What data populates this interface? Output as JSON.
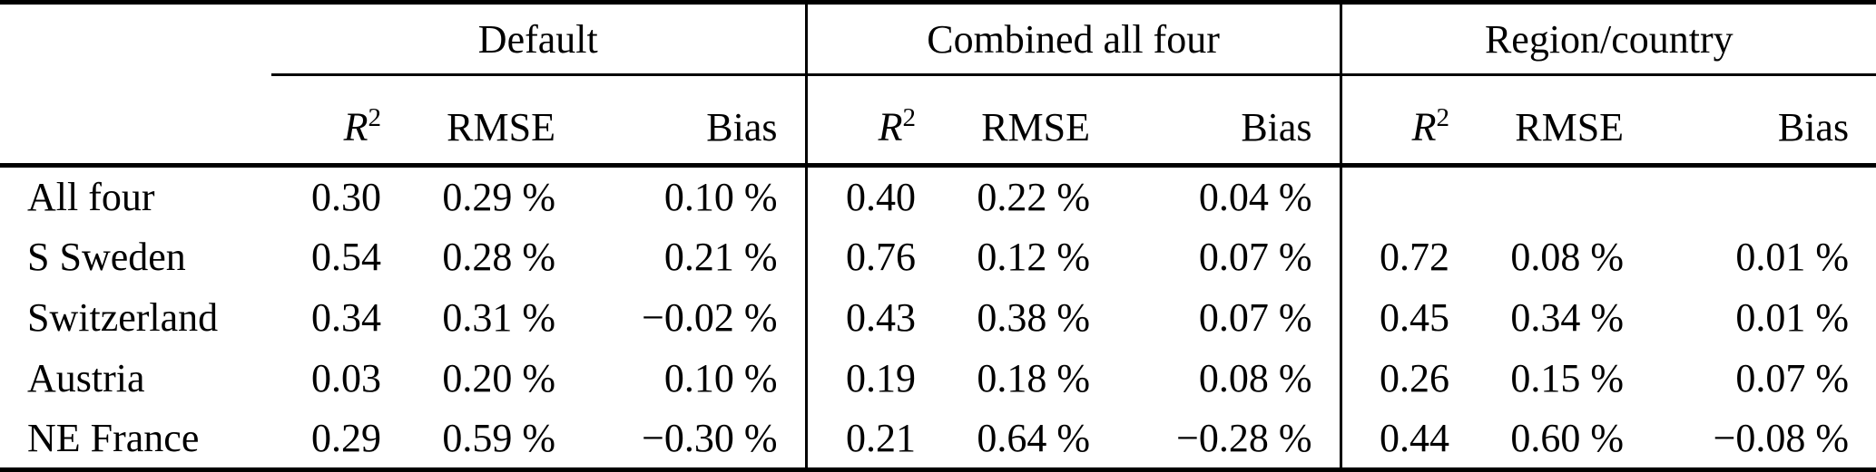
{
  "colors": {
    "text": "#000000",
    "background": "#ffffff",
    "rule": "#000000"
  },
  "table": {
    "groups": [
      {
        "label": "Default"
      },
      {
        "label": "Combined all four"
      },
      {
        "label": "Region/country"
      }
    ],
    "col_headers": {
      "r2_base": "R",
      "r2_sup": "2",
      "rmse": "RMSE",
      "bias": "Bias"
    },
    "rows": [
      {
        "label": "All four",
        "cells": [
          "0.30",
          "0.29 %",
          "0.10 %",
          "0.40",
          "0.22 %",
          "0.04 %",
          "",
          "",
          ""
        ]
      },
      {
        "label": "S Sweden",
        "cells": [
          "0.54",
          "0.28 %",
          "0.21 %",
          "0.76",
          "0.12 %",
          "0.07 %",
          "0.72",
          "0.08 %",
          "0.01 %"
        ]
      },
      {
        "label": "Switzerland",
        "cells": [
          "0.34",
          "0.31 %",
          "−0.02 %",
          "0.43",
          "0.38 %",
          "0.07 %",
          "0.45",
          "0.34 %",
          "0.01 %"
        ]
      },
      {
        "label": "Austria",
        "cells": [
          "0.03",
          "0.20 %",
          "0.10 %",
          "0.19",
          "0.18 %",
          "0.08 %",
          "0.26",
          "0.15 %",
          "0.07 %"
        ]
      },
      {
        "label": "NE France",
        "cells": [
          "0.29",
          "0.59 %",
          "−0.30 %",
          "0.21",
          "0.64 %",
          "−0.28 %",
          "0.44",
          "0.60 %",
          "−0.08 %"
        ]
      }
    ]
  }
}
